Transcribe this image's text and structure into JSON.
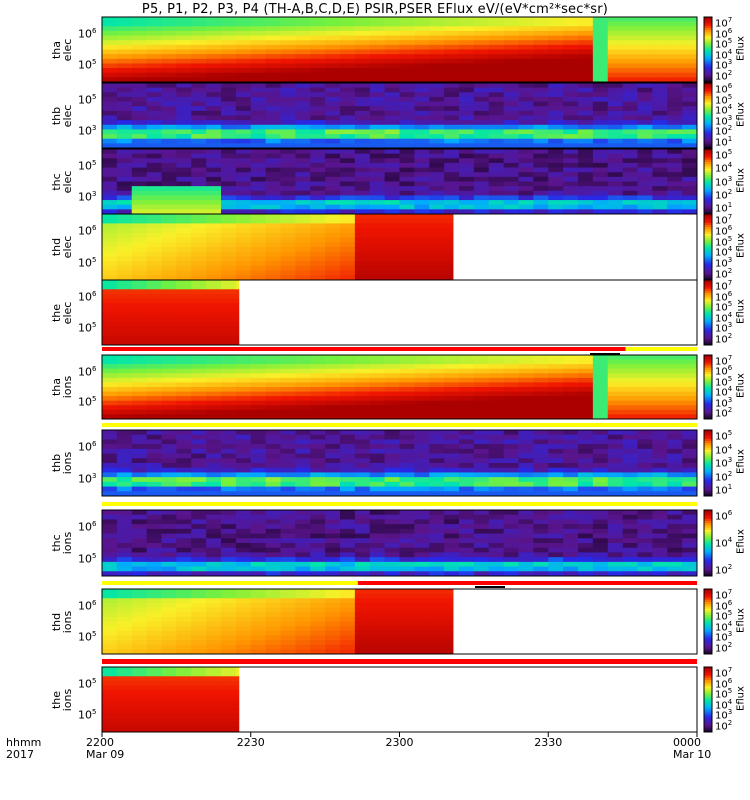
{
  "title": "P5, P1, P2, P3, P4 (TH-A,B,C,D,E) PSIR,PSER EFlux eV/(eV*cm²*sec*sr)",
  "chart_data": {
    "type": "heatmap",
    "x_ticks": [
      {
        "label": "2200",
        "sub": "Mar 09"
      },
      {
        "label": "2230",
        "sub": ""
      },
      {
        "label": "2300",
        "sub": ""
      },
      {
        "label": "2330",
        "sub": ""
      },
      {
        "label": "0000",
        "sub": "Mar 10"
      }
    ],
    "x_axis_label": "hhmm",
    "x_axis_sublabel": "2017",
    "colorbar_label": "Eflux",
    "colorbar_mantissa": "10",
    "panels": [
      {
        "probe": "tha",
        "species": "elec",
        "yticks": [
          "6",
          "5"
        ],
        "cbar_exps": [
          "7",
          "6",
          "5",
          "4",
          "3",
          "2"
        ]
      },
      {
        "probe": "thb",
        "species": "elec",
        "yticks": [
          "5",
          "3"
        ],
        "cbar_exps": [
          "6",
          "5",
          "4",
          "3",
          "2",
          "1"
        ]
      },
      {
        "probe": "thc",
        "species": "elec",
        "yticks": [
          "5",
          "3"
        ],
        "cbar_exps": [
          "5",
          "4",
          "3",
          "2",
          "1"
        ]
      },
      {
        "probe": "thd",
        "species": "elec",
        "yticks": [
          "6",
          "5"
        ],
        "cbar_exps": [
          "7",
          "6",
          "5",
          "4",
          "3",
          "2"
        ]
      },
      {
        "probe": "the",
        "species": "elec",
        "yticks": [
          "6",
          "5"
        ],
        "cbar_exps": [
          "7",
          "6",
          "5",
          "4",
          "3",
          "2"
        ]
      },
      {
        "probe": "tha",
        "species": "ions",
        "yticks": [
          "6",
          "5"
        ],
        "cbar_exps": [
          "7",
          "6",
          "5",
          "4",
          "3",
          "2"
        ]
      },
      {
        "probe": "thb",
        "species": "ions",
        "yticks": [
          "6",
          "3"
        ],
        "cbar_exps": [
          "5",
          "4",
          "3",
          "2",
          "1"
        ]
      },
      {
        "probe": "thc",
        "species": "ions",
        "yticks": [
          "6",
          "5"
        ],
        "cbar_exps": [
          "6",
          "4",
          "2"
        ]
      },
      {
        "probe": "thd",
        "species": "ions",
        "yticks": [
          "6",
          "5"
        ],
        "cbar_exps": [
          "7",
          "6",
          "5",
          "4",
          "3",
          "2"
        ]
      },
      {
        "probe": "the",
        "species": "ions",
        "yticks": [
          "5",
          "5"
        ],
        "cbar_exps": [
          "7",
          "6",
          "5",
          "4",
          "3",
          "2"
        ]
      }
    ]
  }
}
